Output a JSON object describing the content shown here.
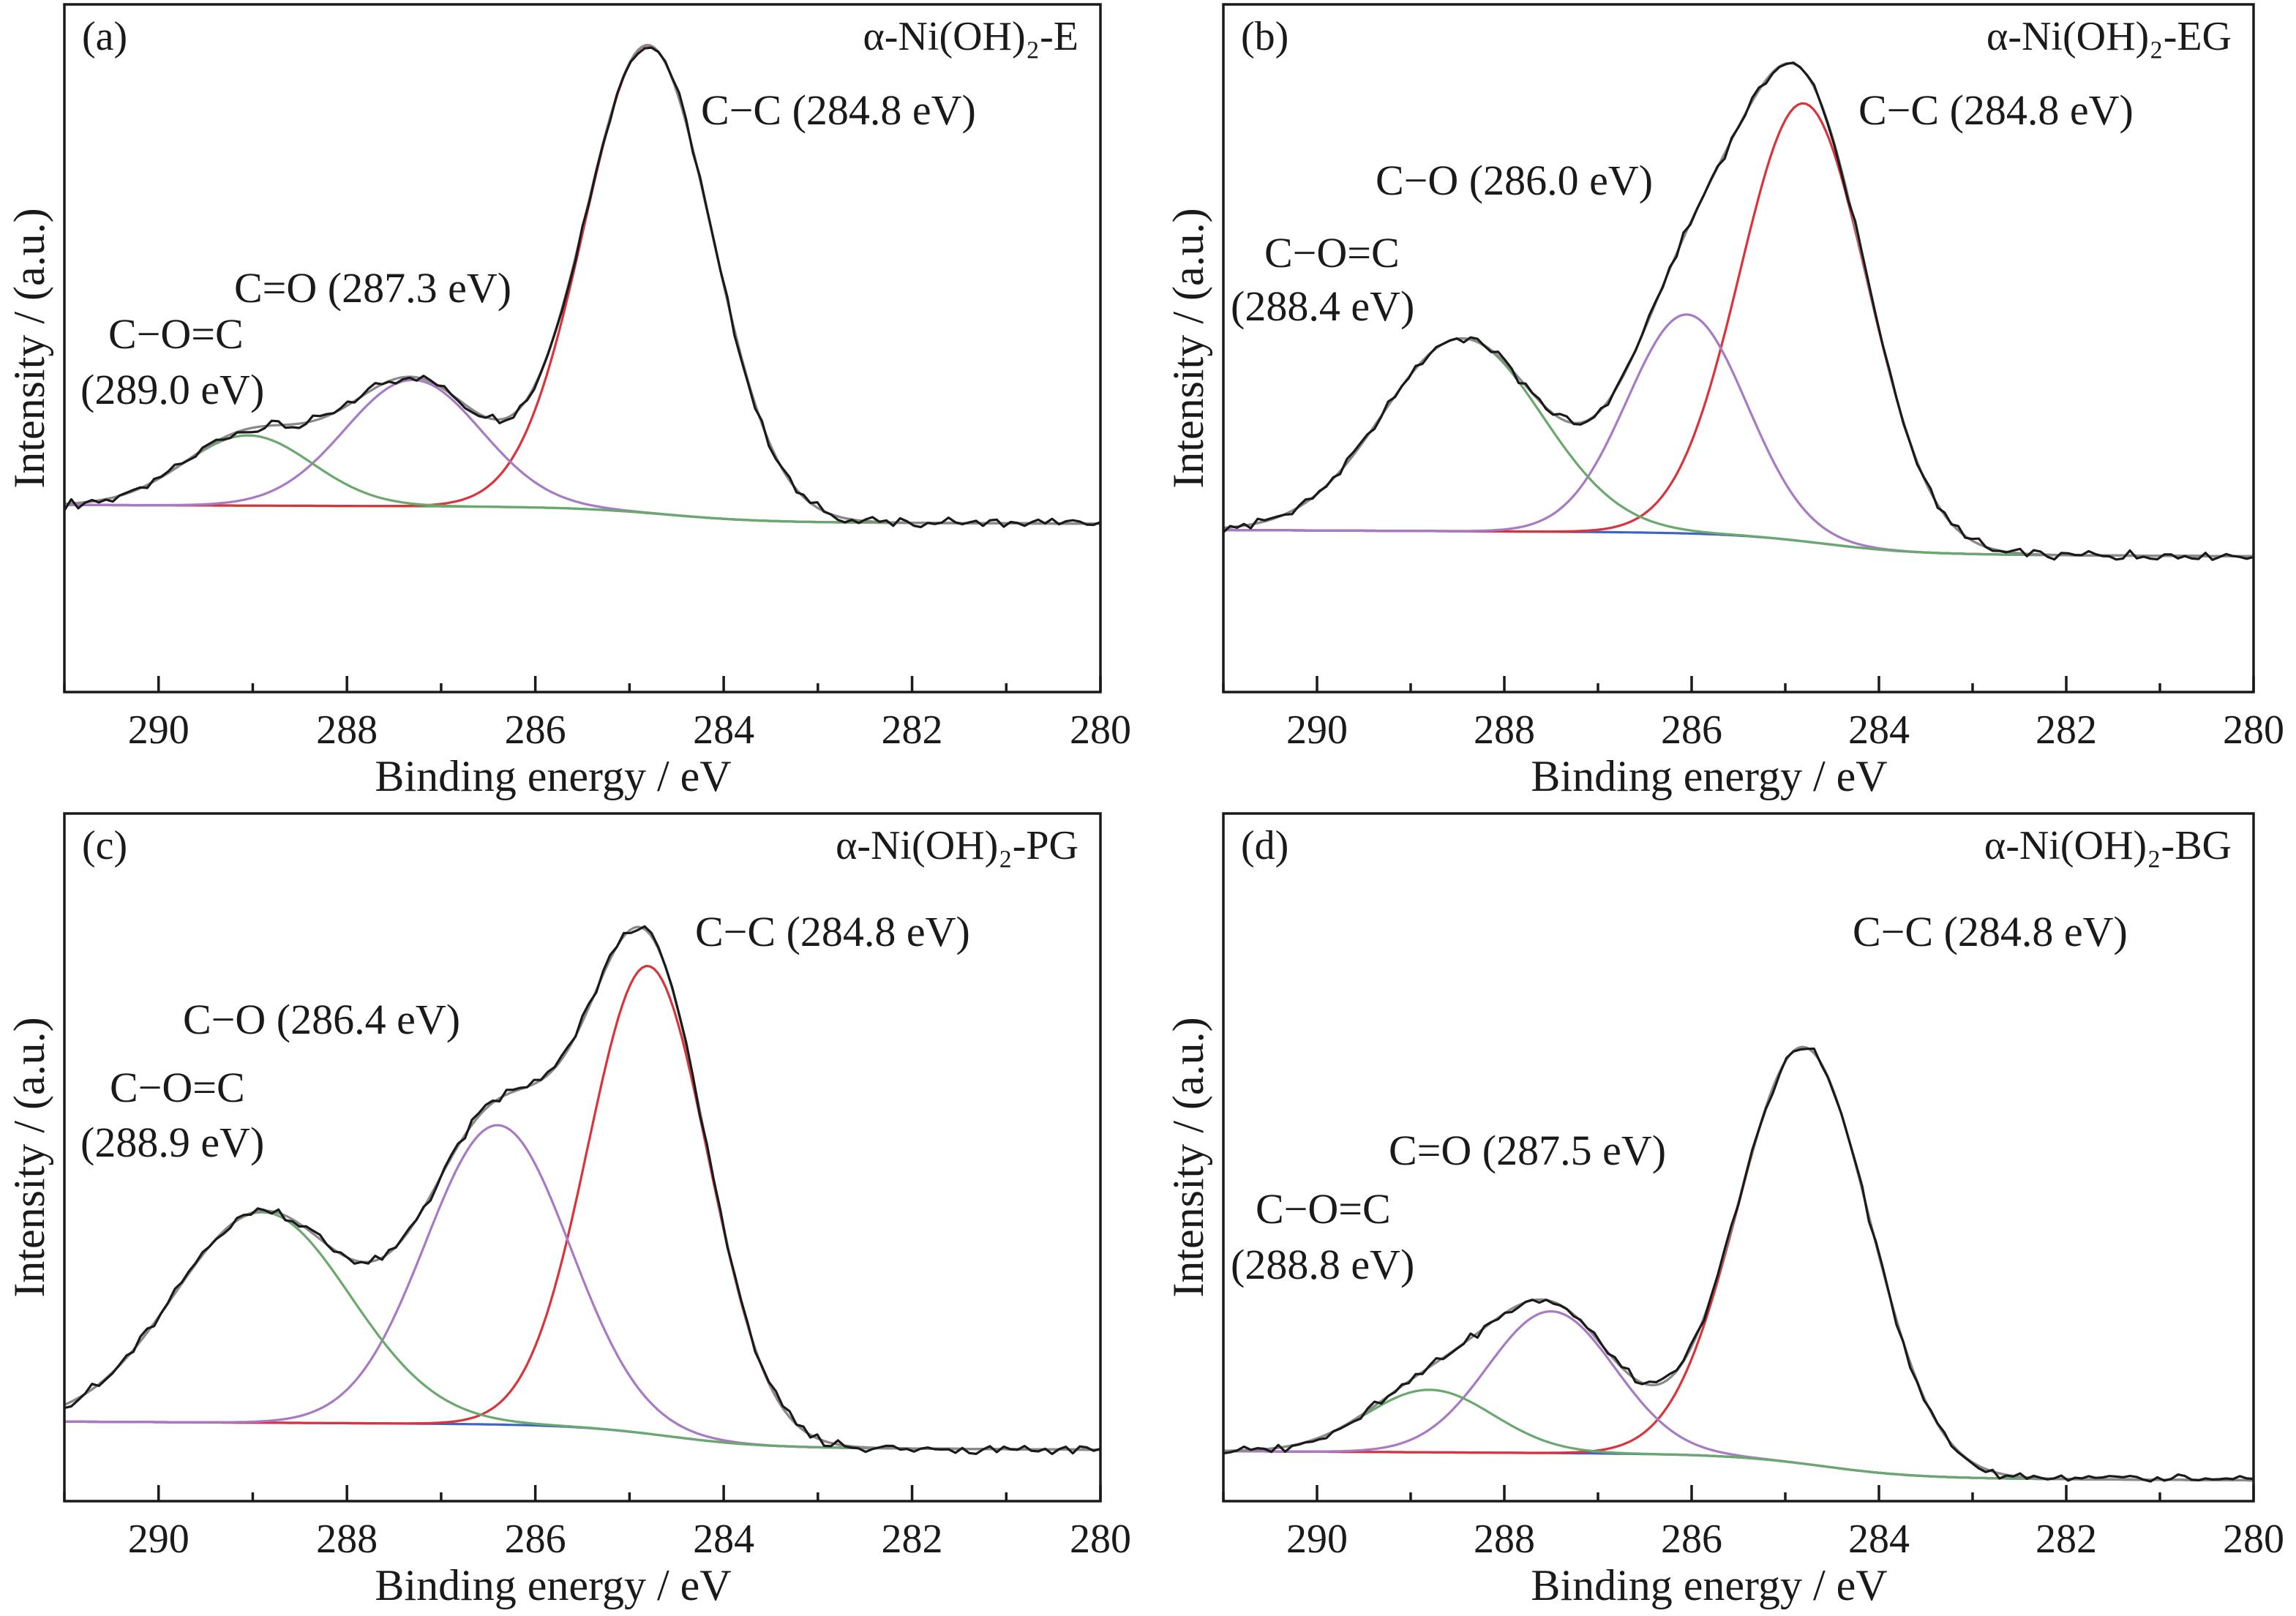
{
  "chart_data": [
    {
      "type": "line",
      "panel_label": "(a)",
      "sample_label": "α-Ni(OH)₂-E",
      "xlabel": "Binding energy / eV",
      "ylabel": "Intensity / (a.u.)",
      "xlim": [
        291,
        280
      ],
      "x_ticks": [
        "290",
        "288",
        "286",
        "284",
        "282",
        "280"
      ],
      "ylim": [
        -0.4,
        1.07
      ],
      "x_reversed": true,
      "background": {
        "start": 0.0,
        "end": -0.04
      },
      "components": [
        {
          "label": "C−C (284.8 eV)",
          "center": 284.8,
          "height": 1.0,
          "fwhm": 1.6,
          "color": "#d9343b"
        },
        {
          "label": "C=O (287.3 eV)",
          "center": 287.3,
          "height": 0.27,
          "fwhm": 1.7,
          "color": "#a77ac4"
        },
        {
          "label": "C−O=C (289.0 eV)",
          "center": 289.05,
          "height": 0.15,
          "fwhm": 1.6,
          "color": "#6aa86e"
        }
      ],
      "envelope_color": "#8a8a8a",
      "raw_color": "#1a1a1a",
      "background_color": "#6aa86e"
    },
    {
      "type": "line",
      "panel_label": "(b)",
      "sample_label": "α-Ni(OH)₂-EG",
      "xlabel": "Binding energy / eV",
      "ylabel": "Intensity / (a.u.)",
      "xlim": [
        291,
        280
      ],
      "x_ticks": [
        "290",
        "288",
        "286",
        "284",
        "282",
        "280"
      ],
      "ylim": [
        -0.37,
        1.2
      ],
      "x_reversed": true,
      "background": {
        "start": 0.0,
        "end": -0.06
      },
      "components": [
        {
          "label": "C−C (284.8 eV)",
          "center": 284.8,
          "height": 1.0,
          "fwhm": 1.6,
          "color": "#d9343b"
        },
        {
          "label": "C−O (286.0 eV)",
          "center": 286.05,
          "height": 0.5,
          "fwhm": 1.5,
          "color": "#a77ac4"
        },
        {
          "label": "C−O=C (288.4 eV)",
          "center": 288.45,
          "height": 0.44,
          "fwhm": 2.0,
          "color": "#6aa86e"
        }
      ],
      "envelope_color": "#8a8a8a",
      "raw_color": "#1a1a1a",
      "background_color": "#3e64c4"
    },
    {
      "type": "line",
      "panel_label": "(c)",
      "sample_label": "α-Ni(OH)₂-PG",
      "xlabel": "Binding energy / eV",
      "ylabel": "Intensity / (a.u.)",
      "xlim": [
        291,
        280
      ],
      "x_ticks": [
        "290",
        "288",
        "286",
        "284",
        "282",
        "280"
      ],
      "ylim": [
        -0.17,
        1.3
      ],
      "x_reversed": true,
      "background": {
        "start": 0.0,
        "end": -0.06
      },
      "components": [
        {
          "label": "C−C (284.8 eV)",
          "center": 284.8,
          "height": 1.0,
          "fwhm": 1.5,
          "color": "#d9343b"
        },
        {
          "label": "C−O (286.4 eV)",
          "center": 286.4,
          "height": 0.64,
          "fwhm": 1.8,
          "color": "#a77ac4"
        },
        {
          "label": "C−O=C (288.9 eV)",
          "center": 288.9,
          "height": 0.45,
          "fwhm": 2.2,
          "color": "#6aa86e"
        }
      ],
      "envelope_color": "#8a8a8a",
      "raw_color": "#1a1a1a",
      "background_color": "#3e64c4"
    },
    {
      "type": "line",
      "panel_label": "(d)",
      "sample_label": "α-Ni(OH)₂-BG",
      "xlabel": "Binding energy / eV",
      "ylabel": "Intensity / (a.u.)",
      "xlim": [
        291,
        280
      ],
      "x_ticks": [
        "290",
        "288",
        "286",
        "284",
        "282",
        "280"
      ],
      "ylim": [
        -0.12,
        1.53
      ],
      "x_reversed": true,
      "background": {
        "start": 0.0,
        "end": -0.07
      },
      "components": [
        {
          "label": "C−C (284.8 eV)",
          "center": 284.8,
          "height": 1.0,
          "fwhm": 1.65,
          "color": "#d9343b"
        },
        {
          "label": "C=O (287.5 eV)",
          "center": 287.5,
          "height": 0.34,
          "fwhm": 1.6,
          "color": "#a77ac4"
        },
        {
          "label": "C−O=C (288.8 eV)",
          "center": 288.8,
          "height": 0.15,
          "fwhm": 1.6,
          "color": "#6aa86e"
        }
      ],
      "envelope_color": "#8a8a8a",
      "raw_color": "#1a1a1a",
      "background_color": "#3e64c4"
    }
  ]
}
